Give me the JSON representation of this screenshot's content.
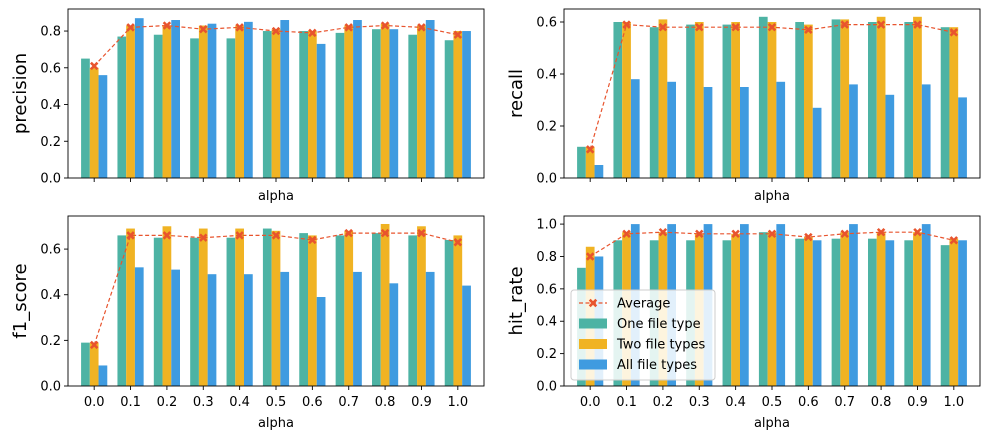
{
  "x_tick_labels": [
    "0.0",
    "0.1",
    "0.2",
    "0.3",
    "0.4",
    "0.5",
    "0.6",
    "0.7",
    "0.8",
    "0.9",
    "1.0"
  ],
  "legend": {
    "placement": "lower-left of hit_rate panel",
    "entries": [
      {
        "label": "Average",
        "color": "#e8542e"
      },
      {
        "label": "One file type",
        "color": "#4db3a4"
      },
      {
        "label": "Two file types",
        "color": "#f0b323"
      },
      {
        "label": "All file types",
        "color": "#3f9be0"
      }
    ]
  },
  "chart_data": [
    {
      "type": "bar",
      "ylabel": "precision",
      "xlabel": "alpha",
      "show_x_tick_labels": false,
      "ylim": [
        0,
        0.92
      ],
      "yticks": [
        "0.0",
        "0.2",
        "0.4",
        "0.6",
        "0.8"
      ],
      "yticks_values": [
        0,
        0.2,
        0.4,
        0.6,
        0.8
      ],
      "categories": [
        "0.0",
        "0.1",
        "0.2",
        "0.3",
        "0.4",
        "0.5",
        "0.6",
        "0.7",
        "0.8",
        "0.9",
        "1.0"
      ],
      "series": [
        {
          "name": "One file type",
          "values": [
            0.65,
            0.77,
            0.78,
            0.76,
            0.76,
            0.8,
            0.8,
            0.79,
            0.81,
            0.78,
            0.75
          ]
        },
        {
          "name": "Two file types",
          "values": [
            0.6,
            0.83,
            0.83,
            0.83,
            0.83,
            0.81,
            0.8,
            0.83,
            0.84,
            0.83,
            0.8
          ]
        },
        {
          "name": "All file types",
          "values": [
            0.56,
            0.87,
            0.86,
            0.84,
            0.85,
            0.86,
            0.73,
            0.86,
            0.81,
            0.86,
            0.8
          ]
        }
      ],
      "average": [
        0.61,
        0.82,
        0.83,
        0.81,
        0.82,
        0.8,
        0.79,
        0.82,
        0.83,
        0.82,
        0.78
      ]
    },
    {
      "type": "bar",
      "ylabel": "recall",
      "xlabel": "alpha",
      "show_x_tick_labels": false,
      "ylim": [
        0,
        0.65
      ],
      "yticks": [
        "0.0",
        "0.2",
        "0.4",
        "0.6"
      ],
      "yticks_values": [
        0,
        0.2,
        0.4,
        0.6
      ],
      "categories": [
        "0.0",
        "0.1",
        "0.2",
        "0.3",
        "0.4",
        "0.5",
        "0.6",
        "0.7",
        "0.8",
        "0.9",
        "1.0"
      ],
      "series": [
        {
          "name": "One file type",
          "values": [
            0.12,
            0.6,
            0.58,
            0.59,
            0.59,
            0.62,
            0.6,
            0.61,
            0.6,
            0.6,
            0.58
          ]
        },
        {
          "name": "Two file types",
          "values": [
            0.12,
            0.6,
            0.61,
            0.6,
            0.6,
            0.6,
            0.59,
            0.61,
            0.62,
            0.62,
            0.58
          ]
        },
        {
          "name": "All file types",
          "values": [
            0.05,
            0.38,
            0.37,
            0.35,
            0.35,
            0.37,
            0.27,
            0.36,
            0.32,
            0.36,
            0.31
          ]
        }
      ],
      "average": [
        0.11,
        0.59,
        0.58,
        0.58,
        0.58,
        0.58,
        0.57,
        0.59,
        0.59,
        0.59,
        0.56
      ]
    },
    {
      "type": "bar",
      "ylabel": "f1_score",
      "xlabel": "alpha",
      "show_x_tick_labels": true,
      "ylim": [
        0,
        0.745
      ],
      "yticks": [
        "0.0",
        "0.2",
        "0.4",
        "0.6"
      ],
      "yticks_values": [
        0,
        0.2,
        0.4,
        0.6
      ],
      "categories": [
        "0.0",
        "0.1",
        "0.2",
        "0.3",
        "0.4",
        "0.5",
        "0.6",
        "0.7",
        "0.8",
        "0.9",
        "1.0"
      ],
      "series": [
        {
          "name": "One file type",
          "values": [
            0.19,
            0.66,
            0.65,
            0.65,
            0.65,
            0.69,
            0.67,
            0.66,
            0.67,
            0.66,
            0.64
          ]
        },
        {
          "name": "Two file types",
          "values": [
            0.19,
            0.69,
            0.7,
            0.69,
            0.69,
            0.68,
            0.66,
            0.68,
            0.71,
            0.7,
            0.66
          ]
        },
        {
          "name": "All file types",
          "values": [
            0.09,
            0.52,
            0.51,
            0.49,
            0.49,
            0.5,
            0.39,
            0.5,
            0.45,
            0.5,
            0.44
          ]
        }
      ],
      "average": [
        0.18,
        0.66,
        0.66,
        0.65,
        0.66,
        0.66,
        0.64,
        0.67,
        0.67,
        0.67,
        0.63
      ]
    },
    {
      "type": "bar",
      "ylabel": "hit_rate",
      "xlabel": "alpha",
      "show_x_tick_labels": true,
      "ylim": [
        0,
        1.05
      ],
      "yticks": [
        "0.0",
        "0.2",
        "0.4",
        "0.6",
        "0.8",
        "1.0"
      ],
      "yticks_values": [
        0,
        0.2,
        0.4,
        0.6,
        0.8,
        1.0
      ],
      "categories": [
        "0.0",
        "0.1",
        "0.2",
        "0.3",
        "0.4",
        "0.5",
        "0.6",
        "0.7",
        "0.8",
        "0.9",
        "1.0"
      ],
      "series": [
        {
          "name": "One file type",
          "values": [
            0.73,
            0.9,
            0.9,
            0.9,
            0.9,
            0.95,
            0.91,
            0.91,
            0.91,
            0.9,
            0.87
          ]
        },
        {
          "name": "Two file types",
          "values": [
            0.86,
            0.95,
            0.95,
            0.94,
            0.94,
            0.95,
            0.92,
            0.95,
            0.95,
            0.95,
            0.91
          ]
        },
        {
          "name": "All file types",
          "values": [
            0.8,
            1.0,
            1.0,
            1.0,
            1.0,
            1.0,
            0.9,
            1.0,
            0.9,
            1.0,
            0.9
          ]
        }
      ],
      "average": [
        0.8,
        0.94,
        0.95,
        0.94,
        0.94,
        0.94,
        0.92,
        0.94,
        0.95,
        0.95,
        0.9
      ]
    }
  ]
}
